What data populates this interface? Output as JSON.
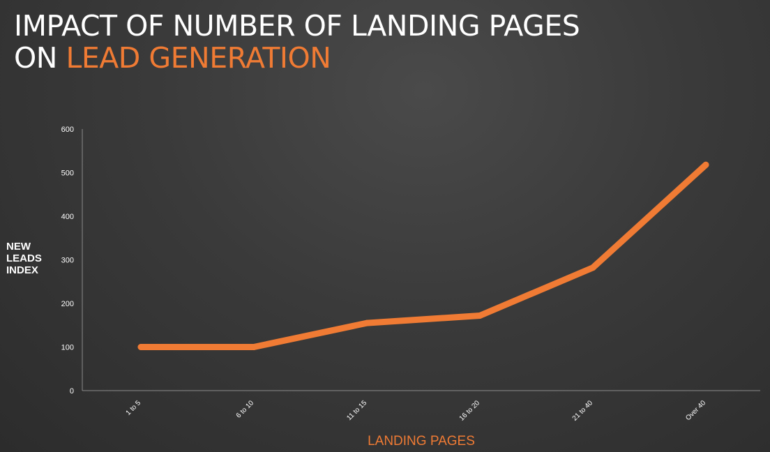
{
  "title": {
    "line1": "IMPACT OF NUMBER OF LANDING PAGES",
    "line2_prefix": "ON ",
    "line2_highlight": "LEAD GENERATION"
  },
  "colors": {
    "accent": "#f07b34",
    "text": "#ffffff",
    "axis": "#8c8c8c"
  },
  "chart_data": {
    "type": "line",
    "categories": [
      "1 to 5",
      "6 to 10",
      "11 to 15",
      "16 to 20",
      "21 to 40",
      "Over 40"
    ],
    "series": [
      {
        "values": [
          100,
          100,
          155,
          172,
          282,
          518
        ]
      }
    ],
    "ylabel": [
      "NEW",
      "LEADS",
      "INDEX"
    ],
    "xlabel": "LANDING PAGES",
    "ylim": [
      0,
      600
    ],
    "yticks": [
      0,
      100,
      200,
      300,
      400,
      500,
      600
    ],
    "grid": false,
    "legend": "none"
  }
}
